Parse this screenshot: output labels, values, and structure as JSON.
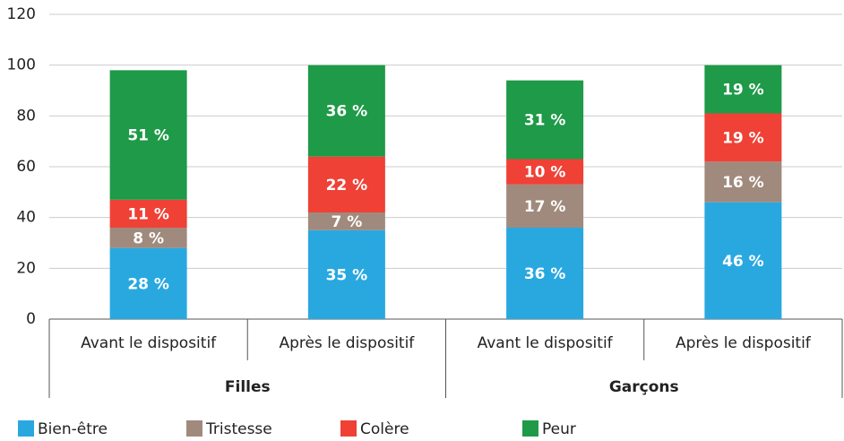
{
  "chart_data": {
    "type": "stacked_bar",
    "groups": [
      {
        "label": "Filles",
        "color": "#7b3f98",
        "categories": [
          "Avant le dispositif",
          "Après le dispositif"
        ]
      },
      {
        "label": "Garçons",
        "color": "#f39c1f",
        "categories": [
          "Avant le dispositif",
          "Après le dispositif"
        ]
      }
    ],
    "series": [
      {
        "name": "Bien-être",
        "color": "#29a8e0",
        "values": [
          28,
          35,
          36,
          46
        ],
        "value_labels": [
          "28 %",
          "35 %",
          "36 %",
          "46 %"
        ]
      },
      {
        "name": "Tristesse",
        "color": "#a08a7d",
        "values": [
          8,
          7,
          17,
          16
        ],
        "value_labels": [
          "8 %",
          "7 %",
          "17 %",
          "16 %"
        ]
      },
      {
        "name": "Colère",
        "color": "#ef4136",
        "values": [
          11,
          22,
          10,
          19
        ],
        "value_labels": [
          "11 %",
          "22 %",
          "10 %",
          "19 %"
        ]
      },
      {
        "name": "Peur",
        "color": "#1e9a48",
        "values": [
          51,
          36,
          31,
          19
        ],
        "value_labels": [
          "51 %",
          "36 %",
          "31 %",
          "19 %"
        ]
      }
    ],
    "ylim": [
      0,
      120
    ],
    "yticks": [
      0,
      20,
      40,
      60,
      80,
      100,
      120
    ],
    "grid": true,
    "legend": "bottom"
  }
}
